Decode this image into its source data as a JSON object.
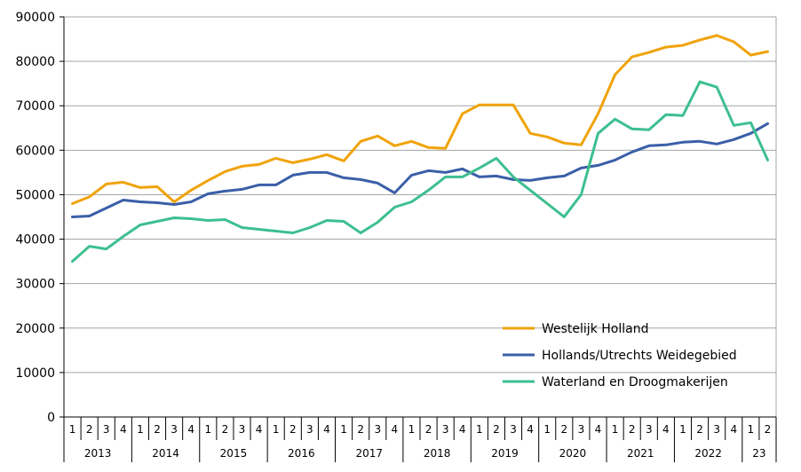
{
  "chart_data": {
    "type": "line",
    "title": "",
    "xlabel": "",
    "ylabel": "",
    "ylim": [
      0,
      90000
    ],
    "yticks": [
      0,
      10000,
      20000,
      30000,
      40000,
      50000,
      60000,
      70000,
      80000,
      90000
    ],
    "grid": true,
    "legend_position": "bottom-right",
    "years": [
      {
        "label": "2013",
        "quarters": [
          "1",
          "2",
          "3",
          "4"
        ]
      },
      {
        "label": "2014",
        "quarters": [
          "1",
          "2",
          "3",
          "4"
        ]
      },
      {
        "label": "2015",
        "quarters": [
          "1",
          "2",
          "3",
          "4"
        ]
      },
      {
        "label": "2016",
        "quarters": [
          "1",
          "2",
          "3",
          "4"
        ]
      },
      {
        "label": "2017",
        "quarters": [
          "1",
          "2",
          "3",
          "4"
        ]
      },
      {
        "label": "2018",
        "quarters": [
          "1",
          "2",
          "3",
          "4"
        ]
      },
      {
        "label": "2019",
        "quarters": [
          "1",
          "2",
          "3",
          "4"
        ]
      },
      {
        "label": "2020",
        "quarters": [
          "1",
          "2",
          "3",
          "4"
        ]
      },
      {
        "label": "2021",
        "quarters": [
          "1",
          "2",
          "3",
          "4"
        ]
      },
      {
        "label": "2022",
        "quarters": [
          "1",
          "2",
          "3",
          "4"
        ]
      },
      {
        "label": "23",
        "quarters": [
          "1",
          "2"
        ]
      }
    ],
    "series": [
      {
        "name": "Westelijk Holland",
        "color": "#F0A30A",
        "values": [
          48000,
          49500,
          52400,
          52800,
          51600,
          51800,
          48400,
          51000,
          53200,
          55200,
          56400,
          56800,
          58200,
          57200,
          58000,
          59000,
          57600,
          62000,
          63200,
          61000,
          62000,
          60600,
          60400,
          68200,
          70200,
          70200,
          70200,
          63800,
          63000,
          61600,
          61200,
          68200,
          77000,
          81000,
          82000,
          83200,
          83600,
          84800,
          85800,
          84400,
          81400,
          82200
        ]
      },
      {
        "name": "Hollands/Utrechts Weidegebied",
        "color": "#3A5FA8",
        "values": [
          45000,
          45200,
          47000,
          48800,
          48400,
          48200,
          47800,
          48400,
          50200,
          50800,
          51200,
          52200,
          52200,
          54400,
          55000,
          55000,
          53800,
          53400,
          52600,
          50400,
          54400,
          55400,
          55000,
          55800,
          54000,
          54200,
          53400,
          53200,
          53800,
          54200,
          56000,
          56600,
          57800,
          59600,
          61000,
          61200,
          61800,
          62000,
          61400,
          62400,
          63800,
          66000
        ]
      },
      {
        "name": "Waterland en Droogmakerijen",
        "color": "#3DBF8F",
        "values": [
          35000,
          38400,
          37800,
          40600,
          43200,
          44000,
          44800,
          44600,
          44200,
          44400,
          42600,
          42200,
          41800,
          41400,
          42600,
          44200,
          44000,
          41400,
          43800,
          47200,
          48400,
          51000,
          54000,
          54000,
          56000,
          58200,
          54000,
          null,
          null,
          45000,
          50000,
          63800,
          67000,
          64800,
          64600,
          68000,
          67800,
          75400,
          74200,
          65600,
          66200,
          57800
        ]
      }
    ],
    "legend": [
      {
        "name": "Westelijk Holland",
        "color": "#F0A30A"
      },
      {
        "name": "Hollands/Utrechts Weidegebied",
        "color": "#3A5FA8"
      },
      {
        "name": "Waterland en Droogmakerijen",
        "color": "#3DBF8F"
      }
    ]
  }
}
